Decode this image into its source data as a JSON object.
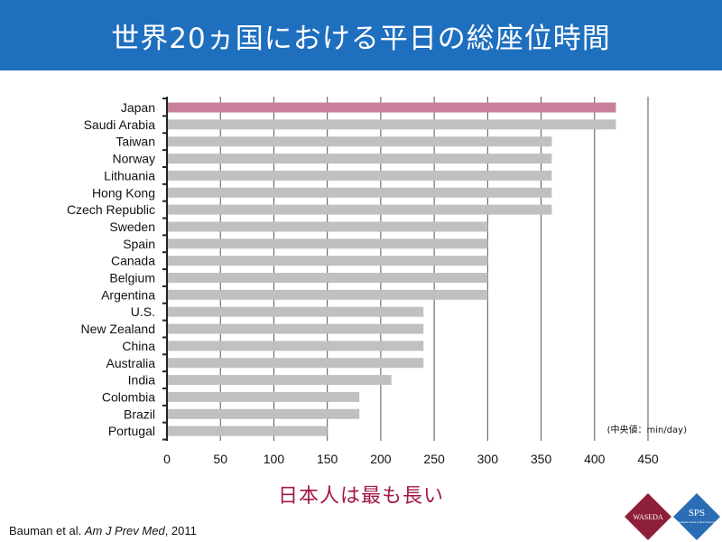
{
  "header": {
    "title": "世界20ヵ国における平日の総座位時間"
  },
  "chart_data": {
    "type": "bar",
    "orientation": "horizontal",
    "categories": [
      "Japan",
      "Saudi Arabia",
      "Taiwan",
      "Norway",
      "Lithuania",
      "Hong Kong",
      "Czech Republic",
      "Sweden",
      "Spain",
      "Canada",
      "Belgium",
      "Argentina",
      "U.S.",
      "New Zealand",
      "China",
      "Australia",
      "India",
      "Colombia",
      "Brazil",
      "Portugal"
    ],
    "values": [
      420,
      420,
      360,
      360,
      360,
      360,
      360,
      300,
      300,
      300,
      300,
      300,
      240,
      240,
      240,
      240,
      210,
      180,
      180,
      150
    ],
    "highlight_index": 0,
    "xlim": [
      0,
      450
    ],
    "xticks": [
      0,
      50,
      100,
      150,
      200,
      250,
      300,
      350,
      400,
      450
    ],
    "unit_note": "(中央値：min/day)",
    "grid": "vertical",
    "colors": {
      "bar": "#c0c0c0",
      "highlight": "#c97f9b",
      "grid": "#555555"
    }
  },
  "conclusion": "日本人は最も長い",
  "citation": {
    "authors": "Bauman et al. ",
    "journal": "Am J Prev Med",
    "year": ", 2011"
  },
  "logos": {
    "left": "WASEDA",
    "right": "SPS",
    "right_sub": "Graduate School of Sport Sciences"
  }
}
